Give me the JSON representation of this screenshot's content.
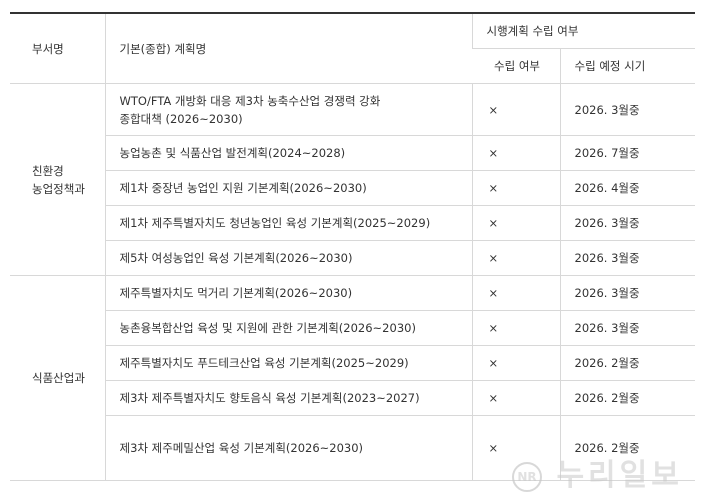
{
  "headers": {
    "dept": "부서명",
    "plan": "기본(종합) 계획명",
    "group": "시행계획 수립 여부",
    "status": "수립 여부",
    "schedule": "수립 예정 시기"
  },
  "groups": [
    {
      "dept": "친환경\n농업정책과",
      "rows": [
        {
          "plan": "WTO/FTA 개방화 대응 제3차 농축수산업 경쟁력 강화 종합대책 (2026~2030)",
          "status": "×",
          "schedule": "2026. 3월중"
        },
        {
          "plan": "농업농촌 및 식품산업 발전계획(2024~2028)",
          "status": "×",
          "schedule": "2026. 7월중"
        },
        {
          "plan": "제1차 중장년 농업인 지원 기본계획(2026~2030)",
          "status": "×",
          "schedule": "2026. 4월중"
        },
        {
          "plan": "제1차 제주특별자치도 청년농업인 육성 기본계획(2025~2029)",
          "status": "×",
          "schedule": "2026. 3월중"
        },
        {
          "plan": "제5차 여성농업인 육성 기본계획(2026~2030)",
          "status": "×",
          "schedule": "2026. 3월중"
        }
      ]
    },
    {
      "dept": "식품산업과",
      "rows": [
        {
          "plan": "제주특별자치도 먹거리 기본계획(2026~2030)",
          "status": "×",
          "schedule": "2026. 3월중"
        },
        {
          "plan": "농촌융복합산업 육성 및 지원에 관한 기본계획(2026~2030)",
          "status": "×",
          "schedule": "2026. 3월중"
        },
        {
          "plan": "제주특별자치도 푸드테크산업 육성 기본계획(2025~2029)",
          "status": "×",
          "schedule": "2026. 2월중"
        },
        {
          "plan": "제3차 제주특별자치도 향토음식 육성 기본계획(2023~2027)",
          "status": "×",
          "schedule": "2026. 2월중"
        },
        {
          "plan": "제3차 제주메밀산업 육성 기본계획(2026~2030)",
          "status": "×",
          "schedule": "2026. 2월중"
        }
      ]
    }
  ],
  "watermark": "NR 누리일보"
}
